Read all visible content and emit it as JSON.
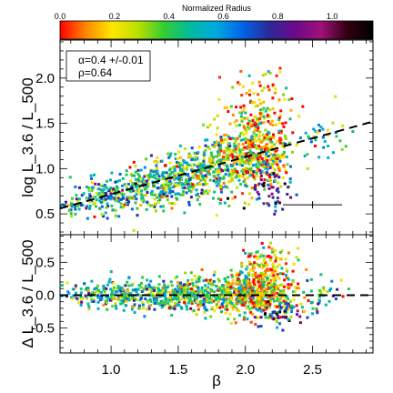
{
  "chart_data": [
    {
      "type": "colorbar",
      "title": "Normalized Radius",
      "ticks": [
        "0.0",
        "0.2",
        "0.4",
        "0.6",
        "0.8",
        "1.0"
      ],
      "range": [
        0,
        1.15
      ],
      "colormap": [
        "#ff0000",
        "#ff8800",
        "#ffe600",
        "#b9e000",
        "#33cc33",
        "#00bba0",
        "#00a8e0",
        "#0064e6",
        "#2a2a99",
        "#6a0a8a",
        "#a0107a",
        "#330011",
        "#000000"
      ]
    },
    {
      "type": "scatter",
      "title": "",
      "xlabel": "β",
      "ylabel": "log L_3.6 / L_500",
      "xlim": [
        0.62,
        2.95
      ],
      "ylim": [
        0.27,
        2.42
      ],
      "yticks": [
        "0.5",
        "1.0",
        "1.5",
        "2.0"
      ],
      "annotation": [
        "α=0.4 +/-0.01",
        "ρ=0.64"
      ],
      "fit_line": {
        "x": [
          0.62,
          2.95
        ],
        "y": [
          0.56,
          1.52
        ],
        "style": "dashed"
      },
      "errorbar": {
        "x": 2.5,
        "y": 0.6,
        "xerr": 0.22,
        "yerr": 0.04
      },
      "clusters": [
        {
          "x": 0.72,
          "y": 0.58,
          "sx": 0.05,
          "sy": 0.04,
          "n": 25,
          "r": 0.55
        },
        {
          "x": 0.95,
          "y": 0.68,
          "sx": 0.12,
          "sy": 0.1,
          "n": 140,
          "r": 0.5
        },
        {
          "x": 1.25,
          "y": 0.8,
          "sx": 0.14,
          "sy": 0.12,
          "n": 220,
          "r": 0.45
        },
        {
          "x": 1.55,
          "y": 0.92,
          "sx": 0.13,
          "sy": 0.14,
          "n": 240,
          "r": 0.4
        },
        {
          "x": 1.85,
          "y": 1.05,
          "sx": 0.14,
          "sy": 0.18,
          "n": 300,
          "r": 0.35
        },
        {
          "x": 2.1,
          "y": 1.2,
          "sx": 0.12,
          "sy": 0.22,
          "n": 380,
          "r": 0.2
        },
        {
          "x": 2.1,
          "y": 1.7,
          "sx": 0.12,
          "sy": 0.2,
          "n": 90,
          "r": 0.15
        },
        {
          "x": 2.2,
          "y": 0.8,
          "sx": 0.1,
          "sy": 0.12,
          "n": 60,
          "r": 0.75
        },
        {
          "x": 2.55,
          "y": 1.3,
          "sx": 0.1,
          "sy": 0.15,
          "n": 40,
          "r": 0.45
        }
      ],
      "points": [
        [
          1.87,
          0.67
        ],
        [
          2.5,
          0.6
        ]
      ]
    },
    {
      "type": "scatter",
      "title": "",
      "xlabel": "β",
      "ylabel": "Δ L_3.6 / L_500",
      "xlim": [
        0.62,
        2.95
      ],
      "ylim": [
        -0.88,
        0.92
      ],
      "xticks": [
        "1.0",
        "1.5",
        "2.0",
        "2.5"
      ],
      "yticks": [
        "-0.5",
        "0.0",
        "0.5"
      ],
      "zero_line": {
        "y": 0.0,
        "style": "dashed"
      },
      "clusters": [
        {
          "x": 0.95,
          "y": 0.0,
          "sx": 0.14,
          "sy": 0.1,
          "n": 140,
          "r": 0.5
        },
        {
          "x": 1.3,
          "y": 0.0,
          "sx": 0.15,
          "sy": 0.11,
          "n": 200,
          "r": 0.45
        },
        {
          "x": 1.65,
          "y": 0.0,
          "sx": 0.15,
          "sy": 0.13,
          "n": 240,
          "r": 0.4
        },
        {
          "x": 1.95,
          "y": 0.02,
          "sx": 0.13,
          "sy": 0.16,
          "n": 280,
          "r": 0.3
        },
        {
          "x": 2.15,
          "y": 0.1,
          "sx": 0.12,
          "sy": 0.2,
          "n": 320,
          "r": 0.18
        },
        {
          "x": 2.15,
          "y": 0.55,
          "sx": 0.1,
          "sy": 0.12,
          "n": 60,
          "r": 0.15
        },
        {
          "x": 2.2,
          "y": -0.3,
          "sx": 0.1,
          "sy": 0.1,
          "n": 60,
          "r": 0.75
        },
        {
          "x": 2.55,
          "y": 0.0,
          "sx": 0.12,
          "sy": 0.15,
          "n": 40,
          "r": 0.45
        }
      ]
    }
  ]
}
